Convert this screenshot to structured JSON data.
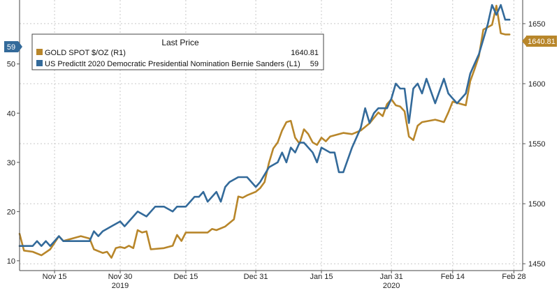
{
  "chart_data": {
    "type": "line",
    "legend": {
      "title": "Last Price",
      "placement": "top-left",
      "entries": [
        {
          "series": "gold",
          "label": "GOLD SPOT $/OZ  (R1)",
          "value": "1640.81"
        },
        {
          "series": "sanders",
          "label": "US PredictIt 2020 Democratic Presidential Nomination Bernie Sanders  (L1)",
          "value": "59"
        }
      ]
    },
    "left_axis": {
      "min": 8,
      "max": 63,
      "ticks": [
        10,
        20,
        30,
        40,
        50
      ]
    },
    "right_axis": {
      "min": 1444.3,
      "max": 1669.7,
      "ticks": [
        1450,
        1500,
        1550,
        1600,
        1650
      ]
    },
    "x_range": [
      "2019-11-07",
      "2020-03-01"
    ],
    "x_ticks": [
      {
        "date": "2019-11-15",
        "label": "Nov 15"
      },
      {
        "date": "2019-11-30",
        "label": "Nov 30"
      },
      {
        "date": "2019-12-15",
        "label": "Dec 15"
      },
      {
        "date": "2019-12-31",
        "label": "Dec 31"
      },
      {
        "date": "2020-01-15",
        "label": "Jan 15"
      },
      {
        "date": "2020-01-31",
        "label": "Jan 31"
      },
      {
        "date": "2020-02-14",
        "label": "Feb 14"
      },
      {
        "date": "2020-02-28",
        "label": "Feb 28"
      }
    ],
    "year_labels": [
      {
        "date": "2019-11-30",
        "label": "2019"
      },
      {
        "date": "2020-01-31",
        "label": "2020"
      }
    ],
    "grid": true,
    "last_value_tags": {
      "left": "59",
      "right": "1640.81"
    },
    "series": [
      {
        "id": "gold",
        "axis": "right",
        "color": "#b8862a",
        "points": [
          [
            "2019-11-07",
            1475
          ],
          [
            "2019-11-08",
            1461
          ],
          [
            "2019-11-10",
            1460
          ],
          [
            "2019-11-12",
            1457
          ],
          [
            "2019-11-14",
            1462
          ],
          [
            "2019-11-16",
            1473
          ],
          [
            "2019-11-17",
            1469
          ],
          [
            "2019-11-21",
            1473
          ],
          [
            "2019-11-23",
            1471
          ],
          [
            "2019-11-24",
            1462
          ],
          [
            "2019-11-26",
            1459
          ],
          [
            "2019-11-27",
            1460
          ],
          [
            "2019-11-28",
            1455
          ],
          [
            "2019-11-29",
            1463
          ],
          [
            "2019-11-30",
            1464
          ],
          [
            "2019-12-01",
            1463
          ],
          [
            "2019-12-02",
            1465
          ],
          [
            "2019-12-03",
            1463
          ],
          [
            "2019-12-04",
            1478
          ],
          [
            "2019-12-05",
            1476
          ],
          [
            "2019-12-06",
            1477
          ],
          [
            "2019-12-07",
            1462
          ],
          [
            "2019-12-10",
            1463
          ],
          [
            "2019-12-12",
            1465
          ],
          [
            "2019-12-13",
            1474
          ],
          [
            "2019-12-14",
            1469
          ],
          [
            "2019-12-15",
            1476
          ],
          [
            "2019-12-20",
            1476
          ],
          [
            "2019-12-21",
            1479
          ],
          [
            "2019-12-22",
            1478
          ],
          [
            "2019-12-24",
            1481
          ],
          [
            "2019-12-26",
            1487
          ],
          [
            "2019-12-27",
            1506
          ],
          [
            "2019-12-28",
            1505
          ],
          [
            "2019-12-29",
            1507
          ],
          [
            "2019-12-31",
            1510
          ],
          [
            "2020-01-01",
            1513
          ],
          [
            "2020-01-02",
            1518
          ],
          [
            "2020-01-03",
            1534
          ],
          [
            "2020-01-04",
            1546
          ],
          [
            "2020-01-05",
            1551
          ],
          [
            "2020-01-06",
            1561
          ],
          [
            "2020-01-07",
            1568
          ],
          [
            "2020-01-08",
            1569
          ],
          [
            "2020-01-09",
            1555
          ],
          [
            "2020-01-10",
            1550
          ],
          [
            "2020-01-11",
            1562
          ],
          [
            "2020-01-12",
            1558
          ],
          [
            "2020-01-13",
            1551
          ],
          [
            "2020-01-14",
            1549
          ],
          [
            "2020-01-15",
            1555
          ],
          [
            "2020-01-16",
            1552
          ],
          [
            "2020-01-17",
            1556
          ],
          [
            "2020-01-18",
            1557
          ],
          [
            "2020-01-20",
            1559
          ],
          [
            "2020-01-22",
            1558
          ],
          [
            "2020-01-24",
            1561
          ],
          [
            "2020-01-26",
            1567
          ],
          [
            "2020-01-28",
            1576
          ],
          [
            "2020-01-29",
            1573
          ],
          [
            "2020-01-30",
            1583
          ],
          [
            "2020-01-31",
            1587
          ],
          [
            "2020-02-01",
            1582
          ],
          [
            "2020-02-02",
            1581
          ],
          [
            "2020-02-03",
            1577
          ],
          [
            "2020-02-04",
            1556
          ],
          [
            "2020-02-05",
            1553
          ],
          [
            "2020-02-06",
            1565
          ],
          [
            "2020-02-07",
            1568
          ],
          [
            "2020-02-10",
            1570
          ],
          [
            "2020-02-11",
            1569
          ],
          [
            "2020-02-12",
            1568
          ],
          [
            "2020-02-13",
            1576
          ],
          [
            "2020-02-14",
            1585
          ],
          [
            "2020-02-16",
            1583
          ],
          [
            "2020-02-17",
            1582
          ],
          [
            "2020-02-18",
            1602
          ],
          [
            "2020-02-19",
            1612
          ],
          [
            "2020-02-20",
            1623
          ],
          [
            "2020-02-21",
            1645
          ],
          [
            "2020-02-23",
            1649
          ],
          [
            "2020-02-24",
            1665
          ],
          [
            "2020-02-25",
            1642
          ],
          [
            "2020-02-26",
            1641
          ],
          [
            "2020-02-27",
            1641
          ]
        ]
      },
      {
        "id": "sanders",
        "axis": "left",
        "color": "#336a9a",
        "points": [
          [
            "2019-11-07",
            13
          ],
          [
            "2019-11-08",
            13
          ],
          [
            "2019-11-10",
            13
          ],
          [
            "2019-11-11",
            14
          ],
          [
            "2019-11-12",
            13
          ],
          [
            "2019-11-13",
            14
          ],
          [
            "2019-11-14",
            13
          ],
          [
            "2019-11-15",
            14
          ],
          [
            "2019-11-16",
            15
          ],
          [
            "2019-11-17",
            14
          ],
          [
            "2019-11-23",
            14
          ],
          [
            "2019-11-24",
            16
          ],
          [
            "2019-11-25",
            15
          ],
          [
            "2019-11-26",
            16
          ],
          [
            "2019-11-28",
            17
          ],
          [
            "2019-11-30",
            18
          ],
          [
            "2019-12-01",
            17
          ],
          [
            "2019-12-02",
            18
          ],
          [
            "2019-12-03",
            19
          ],
          [
            "2019-12-04",
            20
          ],
          [
            "2019-12-06",
            19
          ],
          [
            "2019-12-08",
            21
          ],
          [
            "2019-12-10",
            21
          ],
          [
            "2019-12-12",
            20
          ],
          [
            "2019-12-13",
            21
          ],
          [
            "2019-12-15",
            21
          ],
          [
            "2019-12-16",
            22
          ],
          [
            "2019-12-17",
            23
          ],
          [
            "2019-12-18",
            23
          ],
          [
            "2019-12-19",
            24
          ],
          [
            "2019-12-20",
            22
          ],
          [
            "2019-12-22",
            24
          ],
          [
            "2019-12-23",
            22
          ],
          [
            "2019-12-24",
            25
          ],
          [
            "2019-12-25",
            26
          ],
          [
            "2019-12-27",
            27
          ],
          [
            "2019-12-29",
            27
          ],
          [
            "2019-12-31",
            25
          ],
          [
            "2020-01-01",
            26
          ],
          [
            "2020-01-03",
            29
          ],
          [
            "2020-01-05",
            30
          ],
          [
            "2020-01-06",
            32
          ],
          [
            "2020-01-07",
            30
          ],
          [
            "2020-01-08",
            33
          ],
          [
            "2020-01-09",
            32
          ],
          [
            "2020-01-10",
            34
          ],
          [
            "2020-01-11",
            34
          ],
          [
            "2020-01-13",
            32
          ],
          [
            "2020-01-14",
            30
          ],
          [
            "2020-01-15",
            33
          ],
          [
            "2020-01-17",
            32
          ],
          [
            "2020-01-18",
            32
          ],
          [
            "2020-01-19",
            28
          ],
          [
            "2020-01-20",
            28
          ],
          [
            "2020-01-22",
            33
          ],
          [
            "2020-01-24",
            37
          ],
          [
            "2020-01-25",
            41
          ],
          [
            "2020-01-26",
            38
          ],
          [
            "2020-01-27",
            40
          ],
          [
            "2020-01-28",
            41
          ],
          [
            "2020-01-30",
            41
          ],
          [
            "2020-01-31",
            43
          ],
          [
            "2020-02-01",
            46
          ],
          [
            "2020-02-02",
            45
          ],
          [
            "2020-02-03",
            45
          ],
          [
            "2020-02-04",
            38
          ],
          [
            "2020-02-05",
            45
          ],
          [
            "2020-02-06",
            46
          ],
          [
            "2020-02-07",
            44
          ],
          [
            "2020-02-08",
            47
          ],
          [
            "2020-02-10",
            42
          ],
          [
            "2020-02-12",
            47
          ],
          [
            "2020-02-13",
            44
          ],
          [
            "2020-02-14",
            43
          ],
          [
            "2020-02-15",
            42
          ],
          [
            "2020-02-17",
            44
          ],
          [
            "2020-02-18",
            48
          ],
          [
            "2020-02-19",
            50
          ],
          [
            "2020-02-20",
            52
          ],
          [
            "2020-02-21",
            55
          ],
          [
            "2020-02-22",
            58
          ],
          [
            "2020-02-23",
            62
          ],
          [
            "2020-02-24",
            60
          ],
          [
            "2020-02-25",
            62
          ],
          [
            "2020-02-26",
            59
          ],
          [
            "2020-02-27",
            59
          ]
        ]
      }
    ]
  }
}
